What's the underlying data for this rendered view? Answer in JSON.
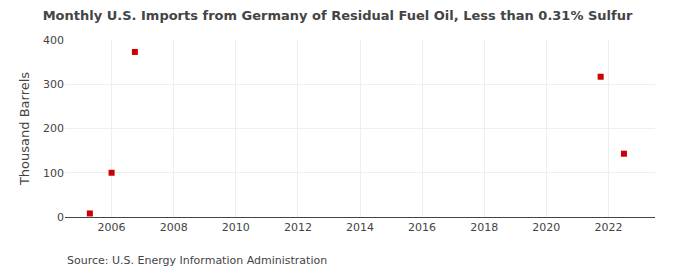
{
  "chart_data": {
    "type": "scatter",
    "title": "Monthly U.S. Imports from Germany of Residual Fuel Oil, Less than 0.31% Sulfur",
    "ylabel": "Thousand Barrels",
    "annotations": [
      "Source: U.S. Energy Information Administration"
    ],
    "x": [
      2005.3,
      2006.0,
      2006.75,
      2021.75,
      2022.5
    ],
    "values": [
      8,
      100,
      373,
      317,
      143
    ],
    "color": "#cc0000",
    "marker": "square",
    "xlim": [
      2004.5,
      2023.5
    ],
    "xticks": [
      2006,
      2008,
      2010,
      2012,
      2014,
      2016,
      2018,
      2020,
      2022
    ],
    "ylim": [
      0,
      400
    ],
    "yticks": [
      0,
      100,
      200,
      300,
      400
    ],
    "grid": true
  }
}
